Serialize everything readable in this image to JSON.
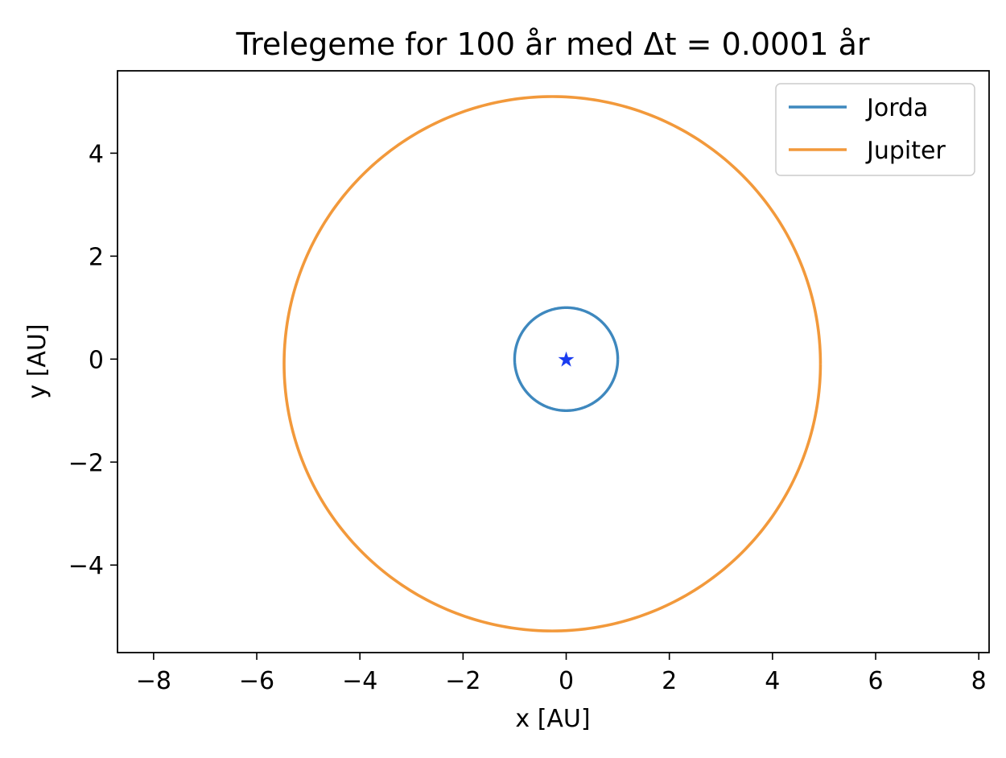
{
  "chart_data": {
    "type": "line",
    "title": "Trelegeme for 100 år med Δt = 0.0001 år",
    "xlabel": "x [AU]",
    "ylabel": "y [AU]",
    "xlim": [
      -8.7,
      8.2
    ],
    "ylim": [
      -5.7,
      5.6
    ],
    "grid": false,
    "legend_position": "top-right",
    "x_ticks": [
      {
        "value": -8,
        "label": "−8"
      },
      {
        "value": -6,
        "label": "−6"
      },
      {
        "value": -4,
        "label": "−4"
      },
      {
        "value": -2,
        "label": "−2"
      },
      {
        "value": 0,
        "label": "0"
      },
      {
        "value": 2,
        "label": "2"
      },
      {
        "value": 4,
        "label": "4"
      },
      {
        "value": 6,
        "label": "6"
      },
      {
        "value": 8,
        "label": "8"
      }
    ],
    "y_ticks": [
      {
        "value": -4,
        "label": "−4"
      },
      {
        "value": -2,
        "label": "−2"
      },
      {
        "value": 0,
        "label": "0"
      },
      {
        "value": 2,
        "label": "2"
      },
      {
        "value": 4,
        "label": "4"
      }
    ],
    "series": [
      {
        "name": "Jorda",
        "color": "#3e88be",
        "shape": "ellipse",
        "center_x": 0.0,
        "center_y": 0.0,
        "radius_x": 1.0,
        "radius_y": 1.0
      },
      {
        "name": "Jupiter",
        "color": "#f2993b",
        "shape": "ellipse",
        "center_x": -0.27,
        "center_y": -0.09,
        "radius_x": 5.2,
        "radius_y": 5.19
      }
    ],
    "markers": [
      {
        "symbol": "★",
        "x": 0.0,
        "y": 0.0,
        "color": "#1a3cf0"
      }
    ]
  }
}
